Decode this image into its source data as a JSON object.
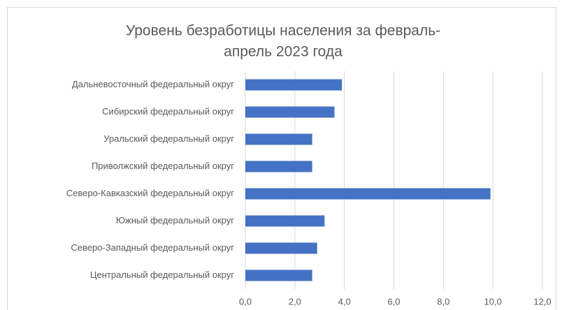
{
  "chart_data": {
    "type": "barh",
    "title": [
      "Уровень безработицы населения за февраль-",
      "апрель 2023 года"
    ],
    "categories": [
      "Дальневосточный федеральный округ",
      "Сибирский федеральный округ",
      "Уральский федеральный округ",
      "Приволжский федеральный округ",
      "Северо-Кавказский федеральный округ",
      "Южный федеральный округ",
      "Северо-Западный федеральный округ",
      "Центральный федеральный округ"
    ],
    "values": [
      3.9,
      3.6,
      2.7,
      2.7,
      9.9,
      3.2,
      2.9,
      2.7
    ],
    "color": "#4472c4",
    "xlim": [
      0,
      12
    ],
    "xticks": [
      {
        "value": 0,
        "label": "0,0"
      },
      {
        "value": 2,
        "label": "2,0"
      },
      {
        "value": 4,
        "label": "4,0"
      },
      {
        "value": 6,
        "label": "6,0"
      },
      {
        "value": 8,
        "label": "8,0"
      },
      {
        "value": 10,
        "label": "10,0"
      },
      {
        "value": 12,
        "label": "12,0"
      }
    ],
    "grid": true
  }
}
